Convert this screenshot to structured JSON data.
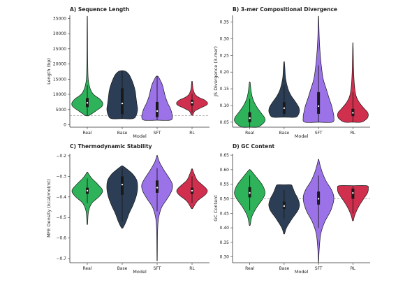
{
  "chart_data": [
    {
      "id": "A",
      "type": "violin",
      "title": "A) Sequence Length",
      "xlabel": "Model",
      "ylabel": "Length (bp)",
      "ylim": [
        -800,
        36000
      ],
      "yticks": [
        0,
        5000,
        10000,
        15000,
        20000,
        25000,
        30000,
        35000
      ],
      "yticklabels": [
        "0",
        "5000",
        "10000",
        "15000",
        "20000",
        "25000",
        "30000",
        "35000"
      ],
      "categories": [
        "Real",
        "Base",
        "SFT",
        "RL"
      ],
      "reference_line": 3000,
      "series": [
        {
          "name": "Real",
          "color": "#2eb35b",
          "min": 3000,
          "max": 35000,
          "q1": 5800,
          "median": 7200,
          "q3": 8800,
          "wlo": 3000,
          "whi": 13000,
          "shape": [
            [
              3000,
              0.1
            ],
            [
              4500,
              0.55
            ],
            [
              6000,
              0.95
            ],
            [
              7200,
              1.0
            ],
            [
              8500,
              0.8
            ],
            [
              10000,
              0.4
            ],
            [
              12000,
              0.18
            ],
            [
              15000,
              0.06
            ],
            [
              20000,
              0.03
            ],
            [
              25000,
              0.02
            ],
            [
              35000,
              0.01
            ]
          ]
        },
        {
          "name": "Base",
          "color": "#2c3e55",
          "min": 2000,
          "max": 17800,
          "q1": 3500,
          "median": 7000,
          "q3": 12000,
          "wlo": 2000,
          "whi": 17800,
          "shape": [
            [
              2000,
              0.7
            ],
            [
              3000,
              0.9
            ],
            [
              5000,
              1.0
            ],
            [
              7000,
              0.95
            ],
            [
              9000,
              0.9
            ],
            [
              11000,
              0.85
            ],
            [
              13000,
              0.75
            ],
            [
              15000,
              0.6
            ],
            [
              16500,
              0.45
            ],
            [
              17500,
              0.25
            ],
            [
              17800,
              0.05
            ]
          ]
        },
        {
          "name": "SFT",
          "color": "#9b72e8",
          "min": 1500,
          "max": 16000,
          "q1": 2500,
          "median": 4500,
          "q3": 7500,
          "wlo": 1500,
          "whi": 16000,
          "shape": [
            [
              1500,
              0.85
            ],
            [
              2500,
              1.0
            ],
            [
              4000,
              0.95
            ],
            [
              5500,
              0.85
            ],
            [
              7000,
              0.7
            ],
            [
              9000,
              0.55
            ],
            [
              11000,
              0.45
            ],
            [
              13000,
              0.35
            ],
            [
              14500,
              0.22
            ],
            [
              15800,
              0.08
            ],
            [
              16000,
              0.02
            ]
          ]
        },
        {
          "name": "RL",
          "color": "#d12f4e",
          "min": 3200,
          "max": 14200,
          "q1": 6300,
          "median": 7300,
          "q3": 8200,
          "wlo": 4000,
          "whi": 10200,
          "shape": [
            [
              3200,
              0.05
            ],
            [
              4500,
              0.18
            ],
            [
              5500,
              0.55
            ],
            [
              6500,
              0.95
            ],
            [
              7300,
              1.0
            ],
            [
              8200,
              0.8
            ],
            [
              9000,
              0.45
            ],
            [
              10000,
              0.2
            ],
            [
              11500,
              0.08
            ],
            [
              13000,
              0.04
            ],
            [
              14200,
              0.02
            ]
          ]
        }
      ]
    },
    {
      "id": "B",
      "type": "violin",
      "title": "B) 3-mer Compositional Divergence",
      "xlabel": "Model",
      "ylabel": "JS Divergence (3-mer)",
      "ylim": [
        0.035,
        0.37
      ],
      "yticks": [
        0.05,
        0.1,
        0.15,
        0.2,
        0.25,
        0.3,
        0.35
      ],
      "yticklabels": [
        "0.05",
        "0.10",
        "0.15",
        "0.20",
        "0.25",
        "0.30",
        "0.35"
      ],
      "categories": [
        "Real",
        "Base",
        "SFT",
        "RL"
      ],
      "series": [
        {
          "name": "Real",
          "color": "#2eb35b",
          "min": 0.035,
          "max": 0.17,
          "q1": 0.05,
          "median": 0.062,
          "q3": 0.08,
          "wlo": 0.035,
          "whi": 0.12,
          "shape": [
            [
              0.035,
              0.5
            ],
            [
              0.045,
              0.85
            ],
            [
              0.055,
              1.0
            ],
            [
              0.065,
              0.95
            ],
            [
              0.08,
              0.7
            ],
            [
              0.1,
              0.4
            ],
            [
              0.12,
              0.2
            ],
            [
              0.14,
              0.1
            ],
            [
              0.16,
              0.05
            ],
            [
              0.17,
              0.02
            ]
          ]
        },
        {
          "name": "Base",
          "color": "#2c3e55",
          "min": 0.065,
          "max": 0.23,
          "q1": 0.075,
          "median": 0.092,
          "q3": 0.11,
          "wlo": 0.065,
          "whi": 0.16,
          "shape": [
            [
              0.065,
              0.75
            ],
            [
              0.075,
              0.95
            ],
            [
              0.085,
              1.0
            ],
            [
              0.095,
              0.95
            ],
            [
              0.11,
              0.75
            ],
            [
              0.13,
              0.45
            ],
            [
              0.15,
              0.25
            ],
            [
              0.18,
              0.1
            ],
            [
              0.21,
              0.05
            ],
            [
              0.23,
              0.02
            ]
          ]
        },
        {
          "name": "SFT",
          "color": "#9b72e8",
          "min": 0.05,
          "max": 0.365,
          "q1": 0.075,
          "median": 0.098,
          "q3": 0.14,
          "wlo": 0.05,
          "whi": 0.22,
          "shape": [
            [
              0.05,
              0.9
            ],
            [
              0.065,
              1.0
            ],
            [
              0.08,
              0.95
            ],
            [
              0.1,
              0.85
            ],
            [
              0.12,
              0.7
            ],
            [
              0.15,
              0.5
            ],
            [
              0.18,
              0.3
            ],
            [
              0.22,
              0.18
            ],
            [
              0.26,
              0.1
            ],
            [
              0.3,
              0.05
            ],
            [
              0.33,
              0.03
            ],
            [
              0.365,
              0.01
            ]
          ]
        },
        {
          "name": "RL",
          "color": "#d12f4e",
          "min": 0.05,
          "max": 0.285,
          "q1": 0.068,
          "median": 0.078,
          "q3": 0.09,
          "wlo": 0.05,
          "whi": 0.14,
          "shape": [
            [
              0.05,
              0.55
            ],
            [
              0.06,
              0.9
            ],
            [
              0.07,
              1.0
            ],
            [
              0.08,
              0.95
            ],
            [
              0.09,
              0.75
            ],
            [
              0.11,
              0.4
            ],
            [
              0.13,
              0.2
            ],
            [
              0.16,
              0.1
            ],
            [
              0.2,
              0.05
            ],
            [
              0.24,
              0.03
            ],
            [
              0.285,
              0.01
            ]
          ]
        }
      ]
    },
    {
      "id": "C",
      "type": "violin",
      "title": "C) Thermodynamic Stability",
      "xlabel": "Model",
      "ylabel": "MFE Density (kcal/mol/nt)",
      "ylim": [
        -0.72,
        -0.19
      ],
      "yticks": [
        -0.7,
        -0.6,
        -0.5,
        -0.4,
        -0.3,
        -0.2
      ],
      "yticklabels": [
        "−0.7",
        "−0.6",
        "−0.5",
        "−0.4",
        "−0.3",
        "−0.2"
      ],
      "categories": [
        "Real",
        "Base",
        "SFT",
        "RL"
      ],
      "series": [
        {
          "name": "Real",
          "color": "#2eb35b",
          "min": -0.53,
          "max": -0.28,
          "q1": -0.385,
          "median": -0.37,
          "q3": -0.355,
          "wlo": -0.43,
          "whi": -0.31,
          "shape": [
            [
              -0.53,
              0.02
            ],
            [
              -0.47,
              0.08
            ],
            [
              -0.43,
              0.3
            ],
            [
              -0.4,
              0.75
            ],
            [
              -0.37,
              1.0
            ],
            [
              -0.34,
              0.7
            ],
            [
              -0.31,
              0.3
            ],
            [
              -0.29,
              0.1
            ],
            [
              -0.28,
              0.02
            ]
          ]
        },
        {
          "name": "Base",
          "color": "#2c3e55",
          "min": -0.55,
          "max": -0.25,
          "q1": -0.39,
          "median": -0.34,
          "q3": -0.3,
          "wlo": -0.52,
          "whi": -0.26,
          "shape": [
            [
              -0.55,
              0.05
            ],
            [
              -0.52,
              0.25
            ],
            [
              -0.48,
              0.45
            ],
            [
              -0.44,
              0.7
            ],
            [
              -0.4,
              0.9
            ],
            [
              -0.36,
              1.0
            ],
            [
              -0.32,
              0.95
            ],
            [
              -0.29,
              0.7
            ],
            [
              -0.27,
              0.4
            ],
            [
              -0.25,
              0.05
            ]
          ]
        },
        {
          "name": "SFT",
          "color": "#9b72e8",
          "min": -0.705,
          "max": -0.2,
          "q1": -0.38,
          "median": -0.355,
          "q3": -0.32,
          "wlo": -0.47,
          "whi": -0.26,
          "shape": [
            [
              -0.705,
              0.01
            ],
            [
              -0.62,
              0.02
            ],
            [
              -0.55,
              0.04
            ],
            [
              -0.5,
              0.1
            ],
            [
              -0.45,
              0.3
            ],
            [
              -0.41,
              0.65
            ],
            [
              -0.37,
              0.95
            ],
            [
              -0.34,
              1.0
            ],
            [
              -0.31,
              0.8
            ],
            [
              -0.27,
              0.45
            ],
            [
              -0.23,
              0.15
            ],
            [
              -0.2,
              0.02
            ]
          ]
        },
        {
          "name": "RL",
          "color": "#d12f4e",
          "min": -0.455,
          "max": -0.265,
          "q1": -0.385,
          "median": -0.37,
          "q3": -0.355,
          "wlo": -0.43,
          "whi": -0.3,
          "shape": [
            [
              -0.455,
              0.05
            ],
            [
              -0.42,
              0.35
            ],
            [
              -0.39,
              0.85
            ],
            [
              -0.37,
              1.0
            ],
            [
              -0.35,
              0.8
            ],
            [
              -0.32,
              0.35
            ],
            [
              -0.29,
              0.15
            ],
            [
              -0.265,
              0.03
            ]
          ]
        }
      ]
    },
    {
      "id": "D",
      "type": "violin",
      "title": "D) GC Content",
      "xlabel": "Model",
      "ylabel": "GC Content",
      "ylim": [
        0.28,
        0.655
      ],
      "yticks": [
        0.3,
        0.35,
        0.4,
        0.45,
        0.5,
        0.55,
        0.6,
        0.65
      ],
      "yticklabels": [
        "0.30",
        "0.35",
        "0.40",
        "0.45",
        "0.50",
        "0.55",
        "0.60",
        "0.65"
      ],
      "categories": [
        "Real",
        "Base",
        "SFT",
        "RL"
      ],
      "reference_line": 0.5,
      "series": [
        {
          "name": "Real",
          "color": "#2eb35b",
          "min": 0.41,
          "max": 0.6,
          "q1": 0.505,
          "median": 0.52,
          "q3": 0.54,
          "wlo": 0.46,
          "whi": 0.58,
          "shape": [
            [
              0.41,
              0.03
            ],
            [
              0.44,
              0.15
            ],
            [
              0.47,
              0.45
            ],
            [
              0.5,
              0.85
            ],
            [
              0.52,
              1.0
            ],
            [
              0.545,
              0.85
            ],
            [
              0.57,
              0.5
            ],
            [
              0.59,
              0.2
            ],
            [
              0.6,
              0.03
            ]
          ]
        },
        {
          "name": "Base",
          "color": "#2c3e55",
          "min": 0.38,
          "max": 0.548,
          "q1": 0.465,
          "median": 0.475,
          "q3": 0.49,
          "wlo": 0.43,
          "whi": 0.53,
          "shape": [
            [
              0.38,
              0.03
            ],
            [
              0.4,
              0.15
            ],
            [
              0.43,
              0.5
            ],
            [
              0.46,
              0.9
            ],
            [
              0.48,
              1.0
            ],
            [
              0.5,
              0.9
            ],
            [
              0.52,
              0.7
            ],
            [
              0.54,
              0.55
            ],
            [
              0.548,
              0.45
            ]
          ]
        },
        {
          "name": "SFT",
          "color": "#9b72e8",
          "min": 0.285,
          "max": 0.635,
          "q1": 0.48,
          "median": 0.5,
          "q3": 0.525,
          "wlo": 0.4,
          "whi": 0.58,
          "shape": [
            [
              0.285,
              0.01
            ],
            [
              0.33,
              0.05
            ],
            [
              0.38,
              0.15
            ],
            [
              0.42,
              0.4
            ],
            [
              0.46,
              0.8
            ],
            [
              0.5,
              1.0
            ],
            [
              0.53,
              0.85
            ],
            [
              0.56,
              0.5
            ],
            [
              0.59,
              0.25
            ],
            [
              0.62,
              0.08
            ],
            [
              0.635,
              0.02
            ]
          ]
        },
        {
          "name": "RL",
          "color": "#d12f4e",
          "min": 0.425,
          "max": 0.545,
          "q1": 0.5,
          "median": 0.52,
          "q3": 0.535,
          "wlo": 0.45,
          "whi": 0.545,
          "shape": [
            [
              0.425,
              0.03
            ],
            [
              0.44,
              0.1
            ],
            [
              0.46,
              0.25
            ],
            [
              0.48,
              0.45
            ],
            [
              0.5,
              0.7
            ],
            [
              0.52,
              0.95
            ],
            [
              0.535,
              1.0
            ],
            [
              0.545,
              0.9
            ]
          ]
        }
      ]
    }
  ]
}
